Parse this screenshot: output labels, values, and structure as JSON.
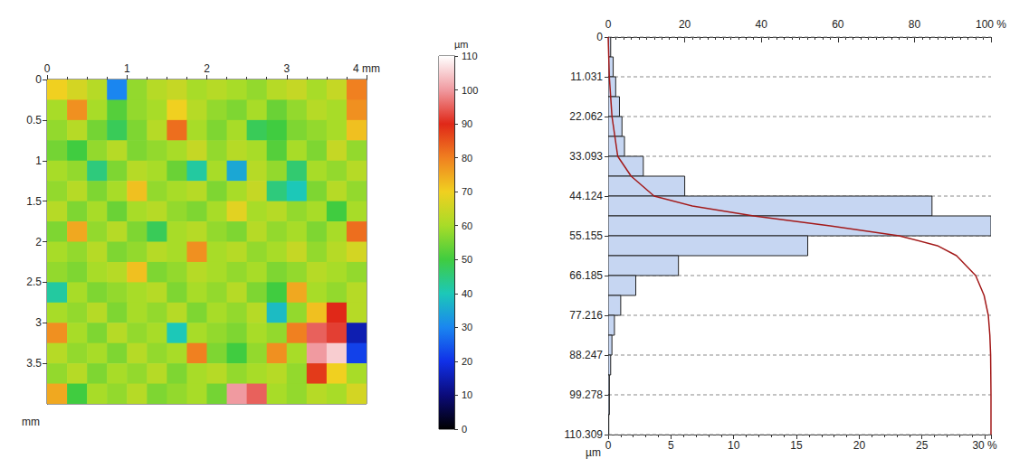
{
  "chart_data": [
    {
      "type": "heatmap",
      "x": [
        0,
        0.25,
        0.5,
        0.75,
        1,
        1.25,
        1.5,
        1.75,
        2,
        2.25,
        2.5,
        2.75,
        3,
        3.25,
        3.5,
        3.75
      ],
      "y": [
        0,
        0.25,
        0.5,
        0.75,
        1,
        1.25,
        1.5,
        1.75,
        2,
        2.25,
        2.5,
        2.75,
        3,
        3.25,
        3.5,
        3.75
      ],
      "z": [
        [
          70,
          66,
          62,
          30,
          58,
          62,
          64,
          60,
          62,
          60,
          58,
          62,
          64,
          60,
          64,
          80
        ],
        [
          60,
          78,
          60,
          52,
          58,
          60,
          70,
          62,
          58,
          56,
          60,
          54,
          58,
          62,
          60,
          78
        ],
        [
          58,
          62,
          55,
          48,
          56,
          62,
          82,
          60,
          56,
          60,
          48,
          50,
          56,
          58,
          60,
          72
        ],
        [
          55,
          50,
          58,
          62,
          56,
          58,
          60,
          64,
          58,
          62,
          60,
          52,
          60,
          56,
          64,
          58
        ],
        [
          60,
          58,
          45,
          56,
          62,
          60,
          54,
          42,
          60,
          35,
          62,
          58,
          46,
          60,
          58,
          62
        ],
        [
          58,
          62,
          56,
          60,
          72,
          58,
          60,
          62,
          56,
          60,
          64,
          45,
          40,
          56,
          62,
          58
        ],
        [
          62,
          56,
          60,
          54,
          60,
          62,
          58,
          56,
          60,
          68,
          60,
          62,
          58,
          60,
          50,
          60
        ],
        [
          56,
          75,
          58,
          62,
          56,
          48,
          60,
          62,
          58,
          56,
          62,
          58,
          60,
          56,
          60,
          82
        ],
        [
          60,
          58,
          62,
          56,
          58,
          62,
          60,
          78,
          60,
          62,
          58,
          60,
          64,
          58,
          62,
          66
        ],
        [
          58,
          56,
          60,
          62,
          72,
          56,
          58,
          62,
          60,
          58,
          60,
          56,
          58,
          62,
          60,
          58
        ],
        [
          42,
          60,
          56,
          58,
          60,
          62,
          56,
          60,
          58,
          62,
          56,
          50,
          75,
          60,
          58,
          62
        ],
        [
          60,
          58,
          62,
          56,
          60,
          58,
          62,
          56,
          60,
          58,
          62,
          38,
          58,
          72,
          90,
          62
        ],
        [
          78,
          60,
          56,
          62,
          58,
          60,
          40,
          60,
          58,
          56,
          60,
          58,
          80,
          95,
          92,
          15
        ],
        [
          62,
          58,
          60,
          56,
          62,
          58,
          60,
          80,
          56,
          50,
          58,
          78,
          60,
          100,
          105,
          22
        ],
        [
          58,
          62,
          56,
          60,
          58,
          62,
          56,
          60,
          62,
          58,
          60,
          62,
          58,
          88,
          70,
          60
        ],
        [
          75,
          50,
          60,
          58,
          62,
          56,
          58,
          60,
          55,
          100,
          95,
          60,
          58,
          62,
          60,
          66
        ]
      ],
      "xlim": [
        0,
        4
      ],
      "xticks": [
        0,
        1,
        2,
        3,
        {
          "value": 4,
          "label": "4 mm"
        }
      ],
      "ylim": [
        0,
        4
      ],
      "yticks": [
        0,
        0.5,
        1,
        1.5,
        2,
        2.5,
        3,
        3.5
      ],
      "y_label": "mm",
      "colorbar": {
        "label": "µm",
        "range": [
          0,
          110
        ],
        "ticks": [
          0,
          10,
          20,
          30,
          40,
          50,
          60,
          70,
          80,
          90,
          100,
          110
        ]
      }
    },
    {
      "type": "bar",
      "orientation": "horizontal",
      "bins": [
        0,
        5.515,
        11.031,
        16.546,
        22.062,
        27.577,
        33.093,
        38.608,
        44.124,
        49.639,
        55.155,
        60.67,
        66.185,
        71.701,
        77.216,
        82.732,
        88.247,
        93.763,
        99.278,
        104.794,
        110.309
      ],
      "values": [
        0.2,
        0.4,
        0.6,
        0.9,
        1.1,
        1.3,
        2.8,
        6.1,
        25.8,
        30.5,
        15.9,
        5.6,
        2.2,
        1.0,
        0.5,
        0.3,
        0.2,
        0.1,
        0.1,
        0.05
      ],
      "color": "#c6d6f2",
      "xlim": [
        0,
        30.5
      ],
      "xticks": [
        0,
        5,
        10,
        15,
        20,
        25,
        {
          "value": 30,
          "label": "30 %"
        }
      ],
      "x2lim": [
        0,
        100
      ],
      "x2ticks": [
        0,
        20,
        40,
        60,
        80,
        {
          "value": 100,
          "label": "100 %"
        }
      ],
      "ylim": [
        0,
        110.309
      ],
      "yticks": [
        0,
        11.031,
        22.062,
        33.093,
        44.124,
        55.155,
        66.185,
        77.216,
        88.247,
        99.278,
        110.309
      ],
      "y_label": "µm",
      "grid": true,
      "curve": {
        "type": "line",
        "color": "#a31a1a",
        "axis": "x2",
        "x": [
          0,
          0.3,
          1,
          2.5,
          6,
          12,
          22,
          38,
          58,
          76,
          86,
          91,
          96,
          98.2,
          99.3,
          99.7,
          99.9,
          100,
          100
        ],
        "y": [
          0,
          11.031,
          22.062,
          33.093,
          38.608,
          44.124,
          46.9,
          49.639,
          52.4,
          55.155,
          57.9,
          60.67,
          66.185,
          71.701,
          77.216,
          82.732,
          88.247,
          99.278,
          110.309
        ]
      }
    }
  ]
}
